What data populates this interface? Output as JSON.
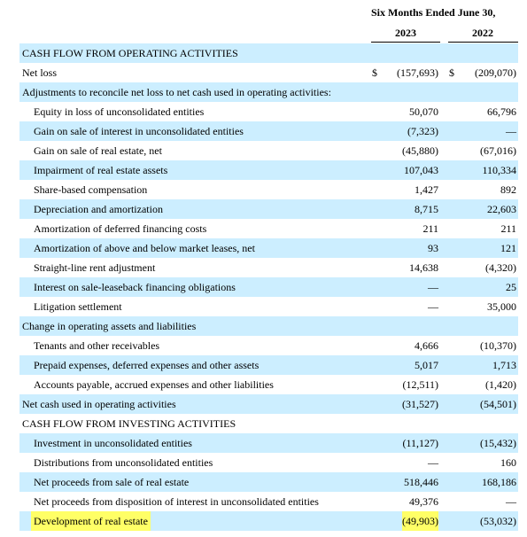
{
  "header": {
    "period": "Six Months Ended June 30,",
    "year1": "2023",
    "year2": "2022"
  },
  "rows": [
    {
      "label": "CASH FLOW FROM OPERATING ACTIVITIES",
      "v1": "",
      "v2": ""
    },
    {
      "label": "Net loss",
      "c1": "$",
      "v1": "(157,693)",
      "c2": "$",
      "v2": "(209,070)"
    },
    {
      "label": "Adjustments to reconcile net loss to net cash used in operating activities:",
      "v1": "",
      "v2": ""
    },
    {
      "label": "Equity in loss of unconsolidated entities",
      "v1": "50,070",
      "v2": "66,796"
    },
    {
      "label": "Gain on sale of interest in unconsolidated entities",
      "v1": "(7,323)",
      "v2": "—"
    },
    {
      "label": "Gain on sale of real estate, net",
      "v1": "(45,880)",
      "v2": "(67,016)"
    },
    {
      "label": "Impairment of real estate assets",
      "v1": "107,043",
      "v2": "110,334"
    },
    {
      "label": "Share-based compensation",
      "v1": "1,427",
      "v2": "892"
    },
    {
      "label": "Depreciation and amortization",
      "v1": "8,715",
      "v2": "22,603"
    },
    {
      "label": "Amortization of deferred financing costs",
      "v1": "211",
      "v2": "211"
    },
    {
      "label": "Amortization of above and below market leases, net",
      "v1": "93",
      "v2": "121"
    },
    {
      "label": "Straight-line rent adjustment",
      "v1": "14,638",
      "v2": "(4,320)"
    },
    {
      "label": "Interest on sale-leaseback financing obligations",
      "v1": "—",
      "v2": "25"
    },
    {
      "label": "Litigation settlement",
      "v1": "—",
      "v2": "35,000"
    },
    {
      "label": "Change in operating assets and liabilities",
      "v1": "",
      "v2": ""
    },
    {
      "label": "Tenants and other receivables",
      "v1": "4,666",
      "v2": "(10,370)"
    },
    {
      "label": "Prepaid expenses, deferred expenses and other assets",
      "v1": "5,017",
      "v2": "1,713"
    },
    {
      "label": "Accounts payable, accrued expenses and other liabilities",
      "v1": "(12,511)",
      "v2": "(1,420)"
    },
    {
      "label": "Net cash used in operating activities",
      "v1": "(31,527)",
      "v2": "(54,501)"
    },
    {
      "label": "CASH FLOW FROM INVESTING ACTIVITIES",
      "v1": "",
      "v2": ""
    },
    {
      "label": "Investment in unconsolidated entities",
      "v1": "(11,127)",
      "v2": "(15,432)"
    },
    {
      "label": "Distributions from unconsolidated entities",
      "v1": "—",
      "v2": "160"
    },
    {
      "label": "Net proceeds from sale of real estate",
      "v1": "518,446",
      "v2": "168,186"
    },
    {
      "label": "Net proceeds from disposition of interest in unconsolidated entities",
      "v1": "49,376",
      "v2": "—"
    },
    {
      "label": "Development of real estate",
      "v1": "(49,903)",
      "v2": "(53,032)"
    }
  ],
  "highlight_color": "#ffff66",
  "shade_color": "#cceeff"
}
